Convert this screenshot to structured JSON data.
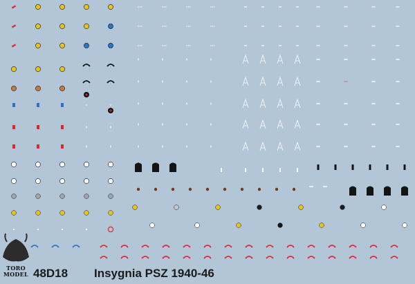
{
  "sheet": {
    "code": "48D18",
    "title": "Insygnia PSZ 1940-46"
  },
  "brand": {
    "line1": "TORO",
    "line2": "MODEL"
  },
  "colors": {
    "background": "#b3c6d8",
    "text": "#1a1a1a",
    "white": "#ffffff",
    "red": "#e3262e",
    "gold": "#e8c318",
    "blue": "#2a73c8",
    "black": "#141414"
  }
}
